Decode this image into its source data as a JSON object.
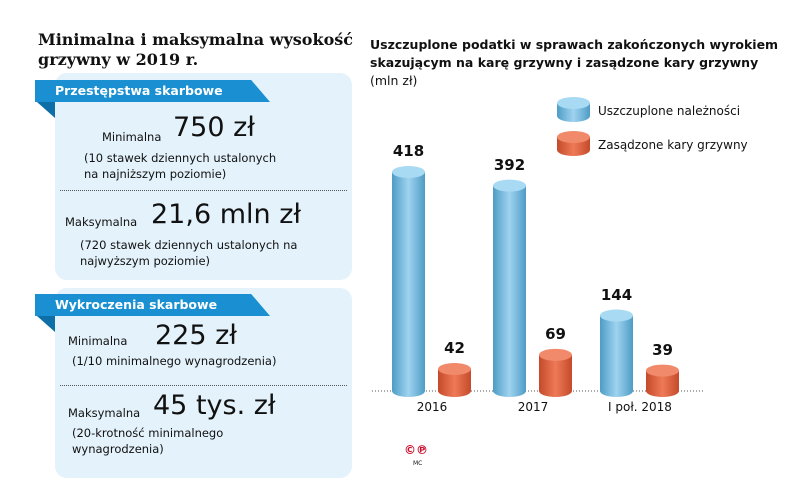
{
  "left": {
    "title": "Minimalna i maksymalna wysokość grzywny w 2019 r.",
    "sections": [
      {
        "header": "Przestępstwa skarbowe",
        "min_label": "Minimalna",
        "min_value": "750 zł",
        "min_note": "(10 stawek dziennych ustalonych na najniższym poziomie)",
        "max_label": "Maksymalna",
        "max_value": "21,6 mln zł",
        "max_note": "(720 stawek dziennych ustalonych na najwyższym poziomie)"
      },
      {
        "header": "Wykroczenia skarbowe",
        "min_label": "Minimalna",
        "min_value": "225 zł",
        "min_note": "(1/10 minimalnego wynagrodzenia)",
        "max_label": "Maksymalna",
        "max_value": "45 tys. zł",
        "max_note": "(20-krotność minimalnego wynagrodzenia)"
      }
    ]
  },
  "chart_data": {
    "type": "bar",
    "title": "Uszczuplone podatki w sprawach zakończonych wyrokiem skazującym na karę grzywny i zasądzone kary grzywny",
    "unit": "(mln zł)",
    "categories": [
      "2016",
      "2017",
      "I poł. 2018"
    ],
    "series": [
      {
        "name": "Uszczuplone należności",
        "color": "#6fb8dc",
        "values": [
          418,
          392,
          144
        ]
      },
      {
        "name": "Zasądzone kary grzywny",
        "color": "#e0623f",
        "values": [
          42,
          69,
          39
        ]
      }
    ],
    "ylim": [
      0,
      418
    ]
  },
  "footer": {
    "credit": "MC",
    "logo": "©℗"
  }
}
